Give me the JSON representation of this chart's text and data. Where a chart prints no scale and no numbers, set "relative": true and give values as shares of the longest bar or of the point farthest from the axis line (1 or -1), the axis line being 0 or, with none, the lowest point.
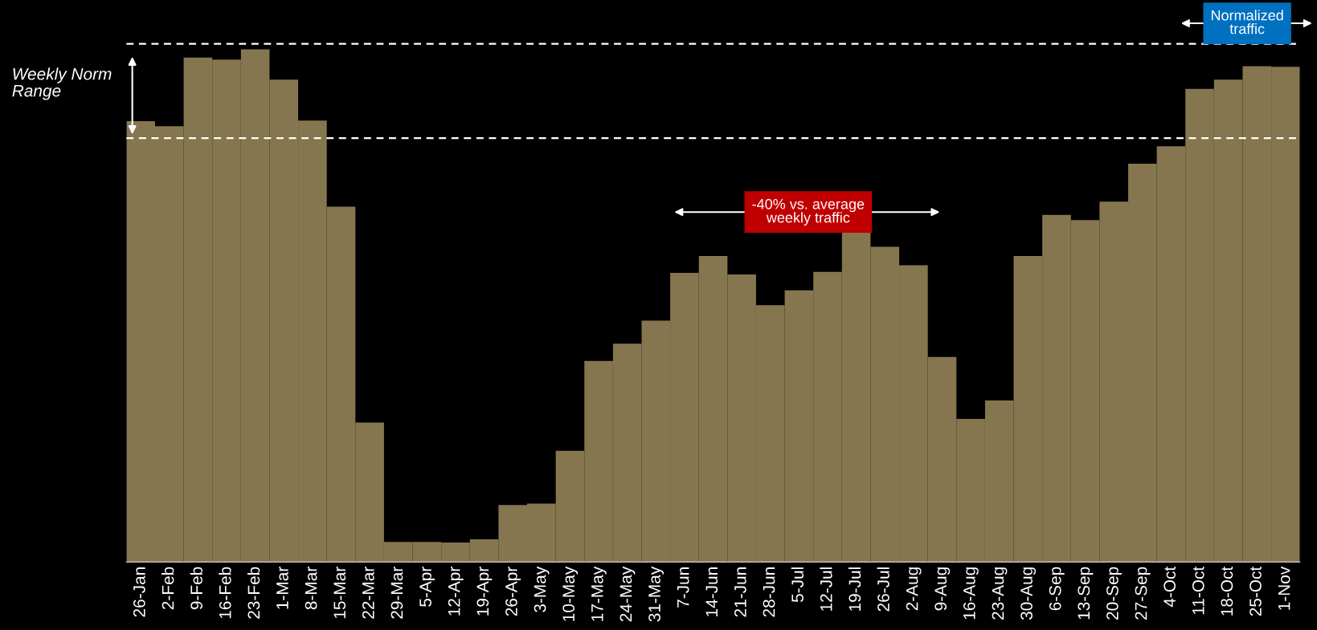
{
  "chart_data": {
    "type": "bar",
    "relative": true,
    "color": "#85764f",
    "categories": [
      "26-Jan",
      "2-Feb",
      "9-Feb",
      "16-Feb",
      "23-Feb",
      "1-Mar",
      "8-Mar",
      "15-Mar",
      "22-Mar",
      "29-Mar",
      "5-Apr",
      "12-Apr",
      "19-Apr",
      "26-Apr",
      "3-May",
      "10-May",
      "17-May",
      "24-May",
      "31-May",
      "7-Jun",
      "14-Jun",
      "21-Jun",
      "28-Jun",
      "5-Jul",
      "12-Jul",
      "19-Jul",
      "26-Jul",
      "2-Aug",
      "9-Aug",
      "16-Aug",
      "23-Aug",
      "30-Aug",
      "6-Sep",
      "13-Sep",
      "20-Sep",
      "27-Sep",
      "4-Oct",
      "11-Oct",
      "18-Oct",
      "25-Oct",
      "1-Nov"
    ],
    "values": [
      0.86,
      0.85,
      0.984,
      0.98,
      1,
      0.941,
      0.861,
      0.693,
      0.272,
      0.039,
      0.039,
      0.038,
      0.044,
      0.111,
      0.114,
      0.217,
      0.392,
      0.426,
      0.471,
      0.564,
      0.597,
      0.561,
      0.501,
      0.53,
      0.566,
      0.644,
      0.615,
      0.579,
      0.4,
      0.279,
      0.315,
      0.597,
      0.677,
      0.667,
      0.703,
      0.777,
      0.811,
      0.923,
      0.941,
      0.967,
      0.966
    ],
    "ref_lines": [
      {
        "axis": "y",
        "value": 1.011,
        "color": "#ffffff",
        "line_style": "dashed"
      },
      {
        "axis": "y",
        "value": 0.827,
        "color": "#ffffff",
        "line_style": "dashed"
      }
    ],
    "annotations": [
      "Weekly Norm\nRange",
      "-40% vs. average\nweekly traffic",
      "Normalized\ntraffic"
    ],
    "grid": false,
    "legend": false
  }
}
